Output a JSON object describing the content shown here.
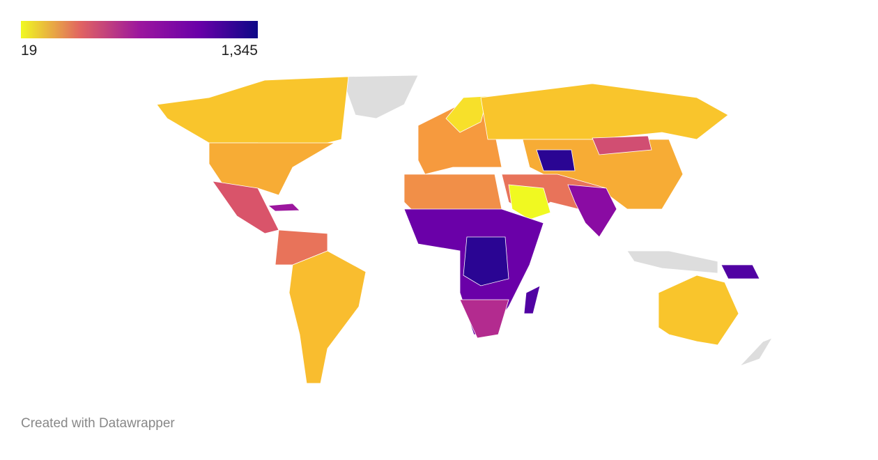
{
  "legend": {
    "ticks": [
      19,
      {
        "value": 1345,
        "label": "1,345"
      }
    ],
    "colors": [
      "#f0f921",
      "#e16462",
      "#9c179e",
      "#6a00a8",
      "#0d0887"
    ]
  },
  "footer": "Created with Datawrapper"
}
